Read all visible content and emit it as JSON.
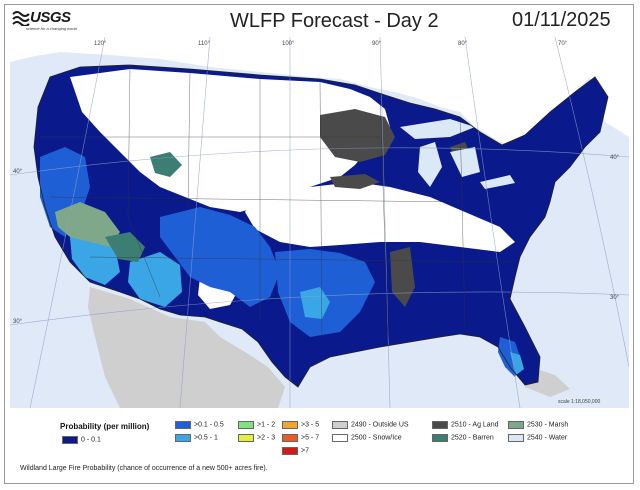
{
  "header": {
    "logo_text": "USGS",
    "logo_tagline": "science for a changing world",
    "title": "WLFP Forecast - Day 2",
    "date": "01/11/2025"
  },
  "map": {
    "lon_labels": [
      "120°",
      "110°",
      "100°",
      "90°",
      "80°",
      "70°"
    ],
    "lat_labels": [
      "40°",
      "30°"
    ],
    "scale_text": "scale 1:18,050,000",
    "colors": {
      "ocean": "#dfe9f7",
      "outside_us": "#cfcfcf",
      "prob_0_01": "#0a1a8c",
      "prob_01_05": "#1f5fd6",
      "prob_05_1": "#3aa6e6",
      "snow_ice": "#ffffff",
      "ag_land": "#4a4a4a",
      "barren": "#3c7d74",
      "marsh": "#7fa88a",
      "water": "#dbe8f6"
    }
  },
  "legend": {
    "title": "Probability (per million)",
    "items": [
      {
        "label": "0 - 0.1",
        "color": "#0a1a8c"
      },
      {
        "label": ">0.1 - 0.5",
        "color": "#1f5fd6"
      },
      {
        "label": ">0.5 - 1",
        "color": "#3aa6e6"
      },
      {
        "label": ">1 - 2",
        "color": "#7ee27e"
      },
      {
        "label": ">2 - 3",
        "color": "#e6ef3c"
      },
      {
        "label": ">3 - 5",
        "color": "#f2a531"
      },
      {
        "label": ">5 - 7",
        "color": "#ee5a24"
      },
      {
        "label": ">7",
        "color": "#d11a1a"
      },
      {
        "label": "2490 - Outside US",
        "color": "#cfcfcf"
      },
      {
        "label": "2500 - Snow/Ice",
        "color": "#ffffff"
      },
      {
        "label": "2510 - Ag Land",
        "color": "#4a4a4a"
      },
      {
        "label": "2520 - Barren",
        "color": "#3c7d74"
      },
      {
        "label": "2530 - Marsh",
        "color": "#7fa88a"
      },
      {
        "label": "2540 - Water",
        "color": "#dbe8f6"
      }
    ]
  },
  "footnote": "Wildland Large Fire Probability (chance of occurrence of a new 500+ acres fire)."
}
